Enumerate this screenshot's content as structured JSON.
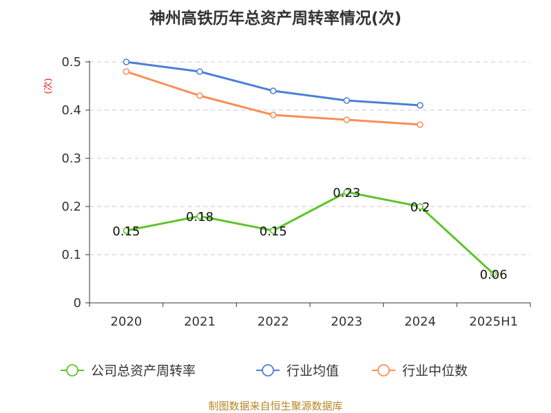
{
  "chart_data": {
    "type": "line",
    "title": "神州高铁历年总资产周转率情况(次)",
    "ylabel": "(次)",
    "xlabel": "",
    "categories": [
      "2020",
      "2021",
      "2022",
      "2023",
      "2024",
      "2025H1"
    ],
    "yticks": [
      "0",
      "0.1",
      "0.2",
      "0.3",
      "0.4",
      "0.5"
    ],
    "ylim": [
      0,
      0.5
    ],
    "grid": true,
    "legend_position": "bottom",
    "series": [
      {
        "name": "公司总资产周转率",
        "color": "#5ec42a",
        "values": [
          0.15,
          0.18,
          0.15,
          0.23,
          0.2,
          0.06
        ],
        "labels": [
          "0.15",
          "0.18",
          "0.15",
          "0.23",
          "0.2",
          "0.06"
        ]
      },
      {
        "name": "行业均值",
        "color": "#4a7fd8",
        "values": [
          0.5,
          0.48,
          0.44,
          0.42,
          0.41,
          null
        ]
      },
      {
        "name": "行业中位数",
        "color": "#f88e57",
        "values": [
          0.48,
          0.43,
          0.39,
          0.38,
          0.37,
          null
        ]
      }
    ],
    "source": "制图数据来自恒生聚源数据库"
  }
}
